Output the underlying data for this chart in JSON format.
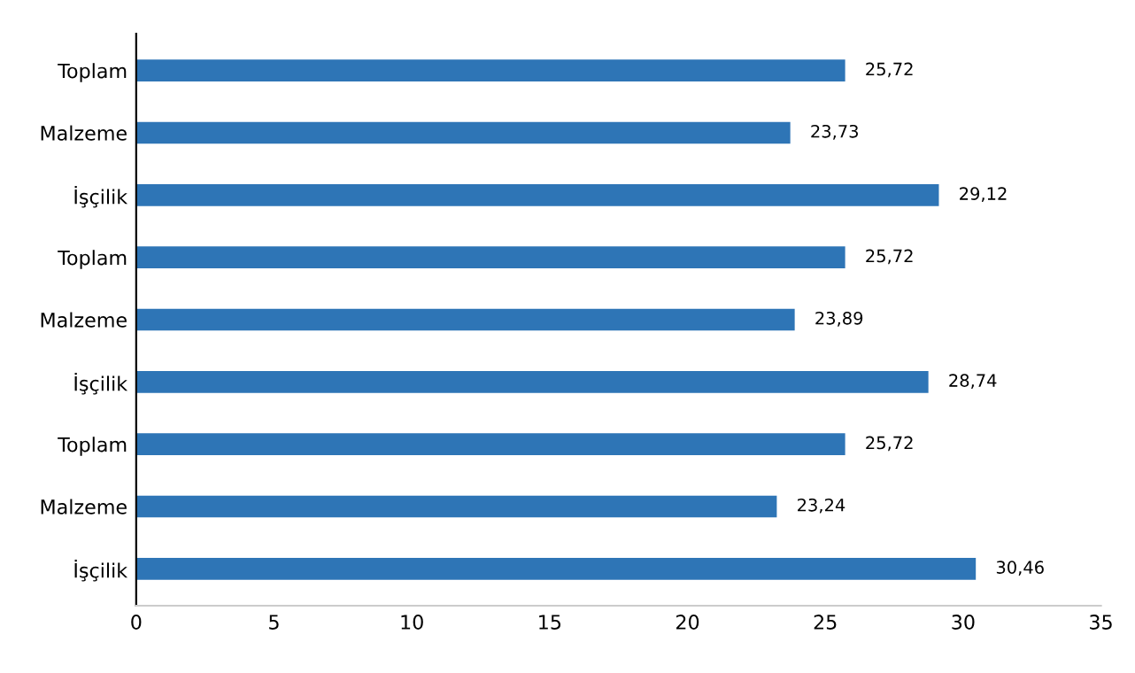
{
  "chart_data": {
    "type": "bar",
    "orientation": "horizontal",
    "categories": [
      "Toplam",
      "Malzeme",
      "İşçilik",
      "Toplam",
      "Malzeme",
      "İşçilik",
      "Toplam",
      "Malzeme",
      "İşçilik"
    ],
    "values": [
      25.72,
      23.73,
      29.12,
      25.72,
      23.89,
      28.74,
      25.72,
      23.24,
      30.46
    ],
    "value_labels": [
      "25,72",
      "23,73",
      "29,12",
      "25,72",
      "23,89",
      "28,74",
      "25,72",
      "23,24",
      "30,46"
    ],
    "color": "#2e75b6",
    "xlim": [
      0,
      35
    ],
    "xticks": [
      0,
      5,
      10,
      15,
      20,
      25,
      30,
      35
    ],
    "grid": false
  }
}
